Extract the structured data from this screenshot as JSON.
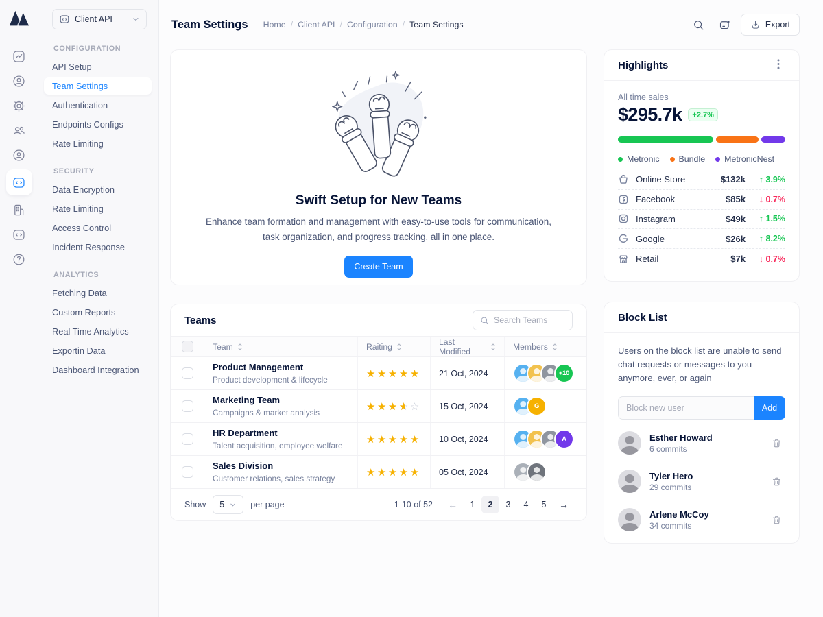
{
  "workspace": {
    "label": "Client API",
    "icon": "code-window-icon"
  },
  "icon_rail": {
    "active_index": 5,
    "items": [
      {
        "name": "analytics-icon"
      },
      {
        "name": "profile-icon"
      },
      {
        "name": "settings-gear-icon"
      },
      {
        "name": "users-icon"
      },
      {
        "name": "user-badge-icon"
      },
      {
        "name": "code-window-icon"
      },
      {
        "name": "company-icon"
      },
      {
        "name": "api-window-icon"
      },
      {
        "name": "help-icon"
      }
    ]
  },
  "sidebar": {
    "sections": [
      {
        "title": "CONFIGURATION",
        "items": [
          {
            "label": "API Setup",
            "active": false
          },
          {
            "label": "Team Settings",
            "active": true
          },
          {
            "label": "Authentication",
            "active": false
          },
          {
            "label": "Endpoints Configs",
            "active": false
          },
          {
            "label": "Rate Limiting",
            "active": false
          }
        ]
      },
      {
        "title": "SECURITY",
        "items": [
          {
            "label": "Data Encryption",
            "active": false
          },
          {
            "label": "Rate Limiting",
            "active": false
          },
          {
            "label": "Access Control",
            "active": false
          },
          {
            "label": "Incident Response",
            "active": false
          }
        ]
      },
      {
        "title": "ANALYTICS",
        "items": [
          {
            "label": "Fetching Data",
            "active": false
          },
          {
            "label": "Custom Reports",
            "active": false
          },
          {
            "label": "Real Time Analytics",
            "active": false
          },
          {
            "label": "Exportin Data",
            "active": false
          },
          {
            "label": "Dashboard Integration",
            "active": false
          }
        ]
      }
    ]
  },
  "header": {
    "title": "Team Settings",
    "breadcrumb": [
      "Home",
      "Client API",
      "Configuration",
      "Team Settings"
    ],
    "actions": [
      {
        "icon": "search-icon"
      },
      {
        "icon": "chat-icon"
      }
    ],
    "export_label": "Export",
    "export_icon": "download-icon"
  },
  "hero": {
    "title": "Swift Setup for New Teams",
    "description": "Enhance team formation and management with easy-to-use tools for communication, task organization, and progress tracking, all in one place.",
    "cta_label": "Create Team",
    "illustration": "raised-fists-illustration"
  },
  "highlights": {
    "title": "Highlights",
    "sales_label": "All time sales",
    "total": "$295.7k",
    "delta": "+2.7%",
    "segments": [
      {
        "name": "Metronic",
        "color": "#17c653",
        "percent": 59
      },
      {
        "name": "Bundle",
        "color": "#f97316",
        "percent": 26
      },
      {
        "name": "MetronicNest",
        "color": "#7239ea",
        "percent": 15
      }
    ],
    "trend_up_color": "#17c653",
    "trend_down_color": "#f8285a",
    "channels": [
      {
        "icon": "online-store-icon",
        "name": "Online Store",
        "value": "$132k",
        "trend": "3.9%",
        "direction": "up"
      },
      {
        "icon": "facebook-icon",
        "name": "Facebook",
        "value": "$85k",
        "trend": "0.7%",
        "direction": "down"
      },
      {
        "icon": "instagram-icon",
        "name": "Instagram",
        "value": "$49k",
        "trend": "1.5%",
        "direction": "up"
      },
      {
        "icon": "google-icon",
        "name": "Google",
        "value": "$26k",
        "trend": "8.2%",
        "direction": "up"
      },
      {
        "icon": "retail-icon",
        "name": "Retail",
        "value": "$7k",
        "trend": "0.7%",
        "direction": "down"
      }
    ]
  },
  "teams": {
    "title": "Teams",
    "search_placeholder": "Search Teams",
    "columns": [
      "Team",
      "Raiting",
      "Last Modified",
      "Members"
    ],
    "rows": [
      {
        "name": "Product Management",
        "description": "Product development & lifecycle",
        "rating": 5,
        "last_modified": "21 Oct, 2024",
        "members": {
          "avatars": [
            "#56b1f0",
            "#f2c24e",
            "#8f959f"
          ],
          "badge": {
            "text": "+10",
            "color": "#17c653"
          }
        }
      },
      {
        "name": "Marketing Team",
        "description": "Campaigns & market analysis",
        "rating": 3.5,
        "last_modified": "15 Oct, 2024",
        "members": {
          "avatars": [
            "#56b1f0"
          ],
          "badge": {
            "text": "G",
            "color": "#f6b100"
          }
        }
      },
      {
        "name": "HR Department",
        "description": "Talent acquisition, employee welfare",
        "rating": 5,
        "last_modified": "10 Oct, 2024",
        "members": {
          "avatars": [
            "#56b1f0",
            "#f2c24e",
            "#8f959f"
          ],
          "badge": {
            "text": "A",
            "color": "#7239ea"
          }
        }
      },
      {
        "name": "Sales Division",
        "description": "Customer relations, sales strategy",
        "rating": 5,
        "last_modified": "05 Oct, 2024",
        "members": {
          "avatars": [
            "#aab0b8",
            "#6f747c"
          ],
          "badge": null
        }
      }
    ],
    "footer": {
      "show_label": "Show",
      "per_page": "5",
      "per_page_suffix": "per page",
      "range": "1-10 of 52",
      "pages": [
        "1",
        "2",
        "3",
        "4",
        "5"
      ],
      "active_page": "2",
      "prev_icon": "arrow-left-icon",
      "next_icon": "arrow-right-icon"
    }
  },
  "block_list": {
    "title": "Block List",
    "description": "Users on the block list are unable to send chat requests or messages to you anymore, ever, or again",
    "input_placeholder": "Block new user",
    "add_label": "Add",
    "users": [
      {
        "name": "Esther Howard",
        "commits": "6 commits"
      },
      {
        "name": "Tyler Hero",
        "commits": "29 commits"
      },
      {
        "name": "Arlene McCoy",
        "commits": "34 commits"
      }
    ]
  }
}
